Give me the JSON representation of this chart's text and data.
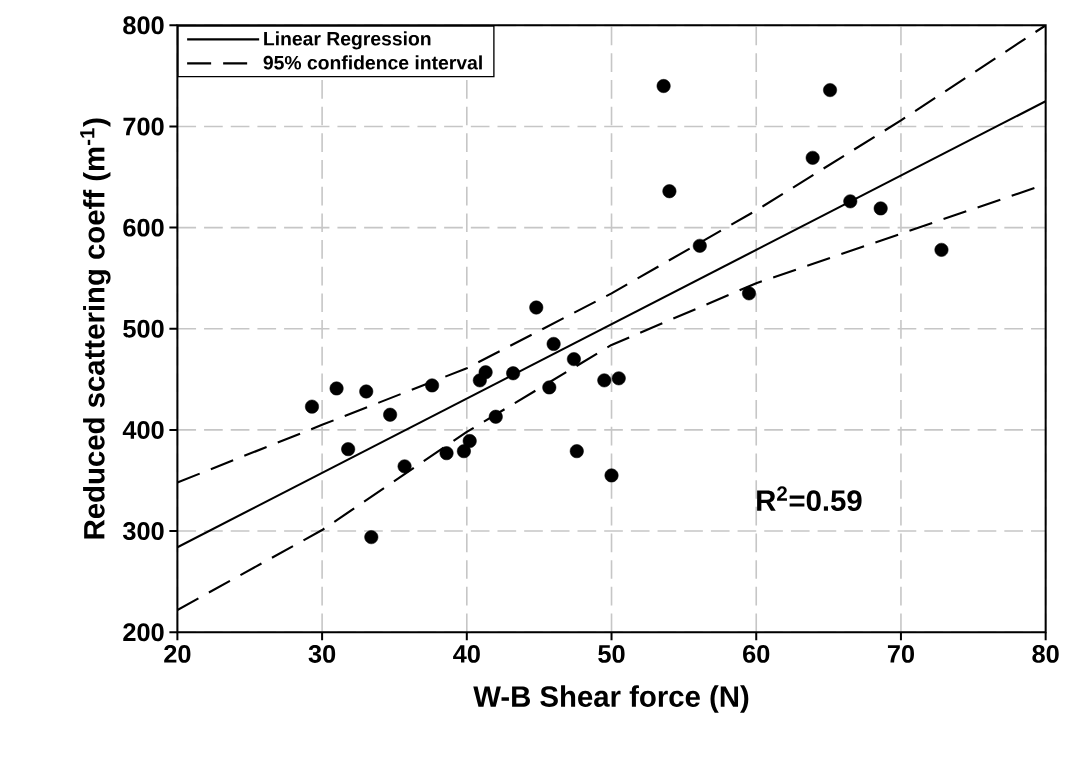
{
  "chart_data": {
    "type": "scatter",
    "xlabel": "W-B Shear force (N)",
    "ylabel": "Reduced scattering coeff (m$^{-1}$)",
    "xlim": [
      20,
      80
    ],
    "ylim": [
      200,
      800
    ],
    "xticks": [
      20,
      30,
      40,
      50,
      60,
      70,
      80
    ],
    "yticks": [
      200,
      300,
      400,
      500,
      600,
      700,
      800
    ],
    "grid": true,
    "legend": "top left",
    "annotations": [
      "R$^{2}$=0.59"
    ],
    "series": [
      {
        "color": "#000000",
        "marker": "circle",
        "x": [
          29.3,
          31.0,
          33.05,
          34.7,
          31.8,
          33.4,
          35.7,
          37.6,
          38.6,
          39.8,
          40.2,
          40.9,
          41.3,
          42.0,
          43.2,
          44.8,
          46.0,
          45.7,
          47.4,
          47.6,
          49.5,
          50.5,
          50.0,
          54.0,
          56.1,
          59.5,
          63.9,
          66.5,
          68.6,
          72.8,
          53.6,
          65.1
        ],
        "values": [
          423,
          441,
          438,
          415,
          381,
          294,
          364,
          444,
          377,
          379,
          389,
          449,
          457,
          413,
          456,
          521,
          485,
          442,
          470,
          379,
          449,
          451,
          355,
          636,
          582,
          535,
          669,
          626,
          619,
          578,
          740,
          736
        ]
      },
      {
        "type": "line",
        "name": "Linear Regression",
        "color": "#000000",
        "line_style": "solid",
        "marker": "none",
        "x": [
          20,
          80
        ],
        "values": [
          284,
          725
        ]
      },
      {
        "type": "line",
        "name": "95% confidence interval",
        "color": "#000000",
        "line_style": "dashed",
        "marker": "none",
        "x": [
          20,
          30,
          40,
          50,
          60,
          70,
          80
        ],
        "values": [
          348,
          405,
          461,
          535,
          617,
          706,
          800
        ]
      },
      {
        "type": "line",
        "color": "#000000",
        "line_style": "dashed",
        "marker": "none",
        "x": [
          20,
          30,
          40,
          50,
          60,
          70,
          80
        ],
        "values": [
          222,
          301,
          398,
          484,
          545,
          594,
          643
        ]
      }
    ]
  }
}
